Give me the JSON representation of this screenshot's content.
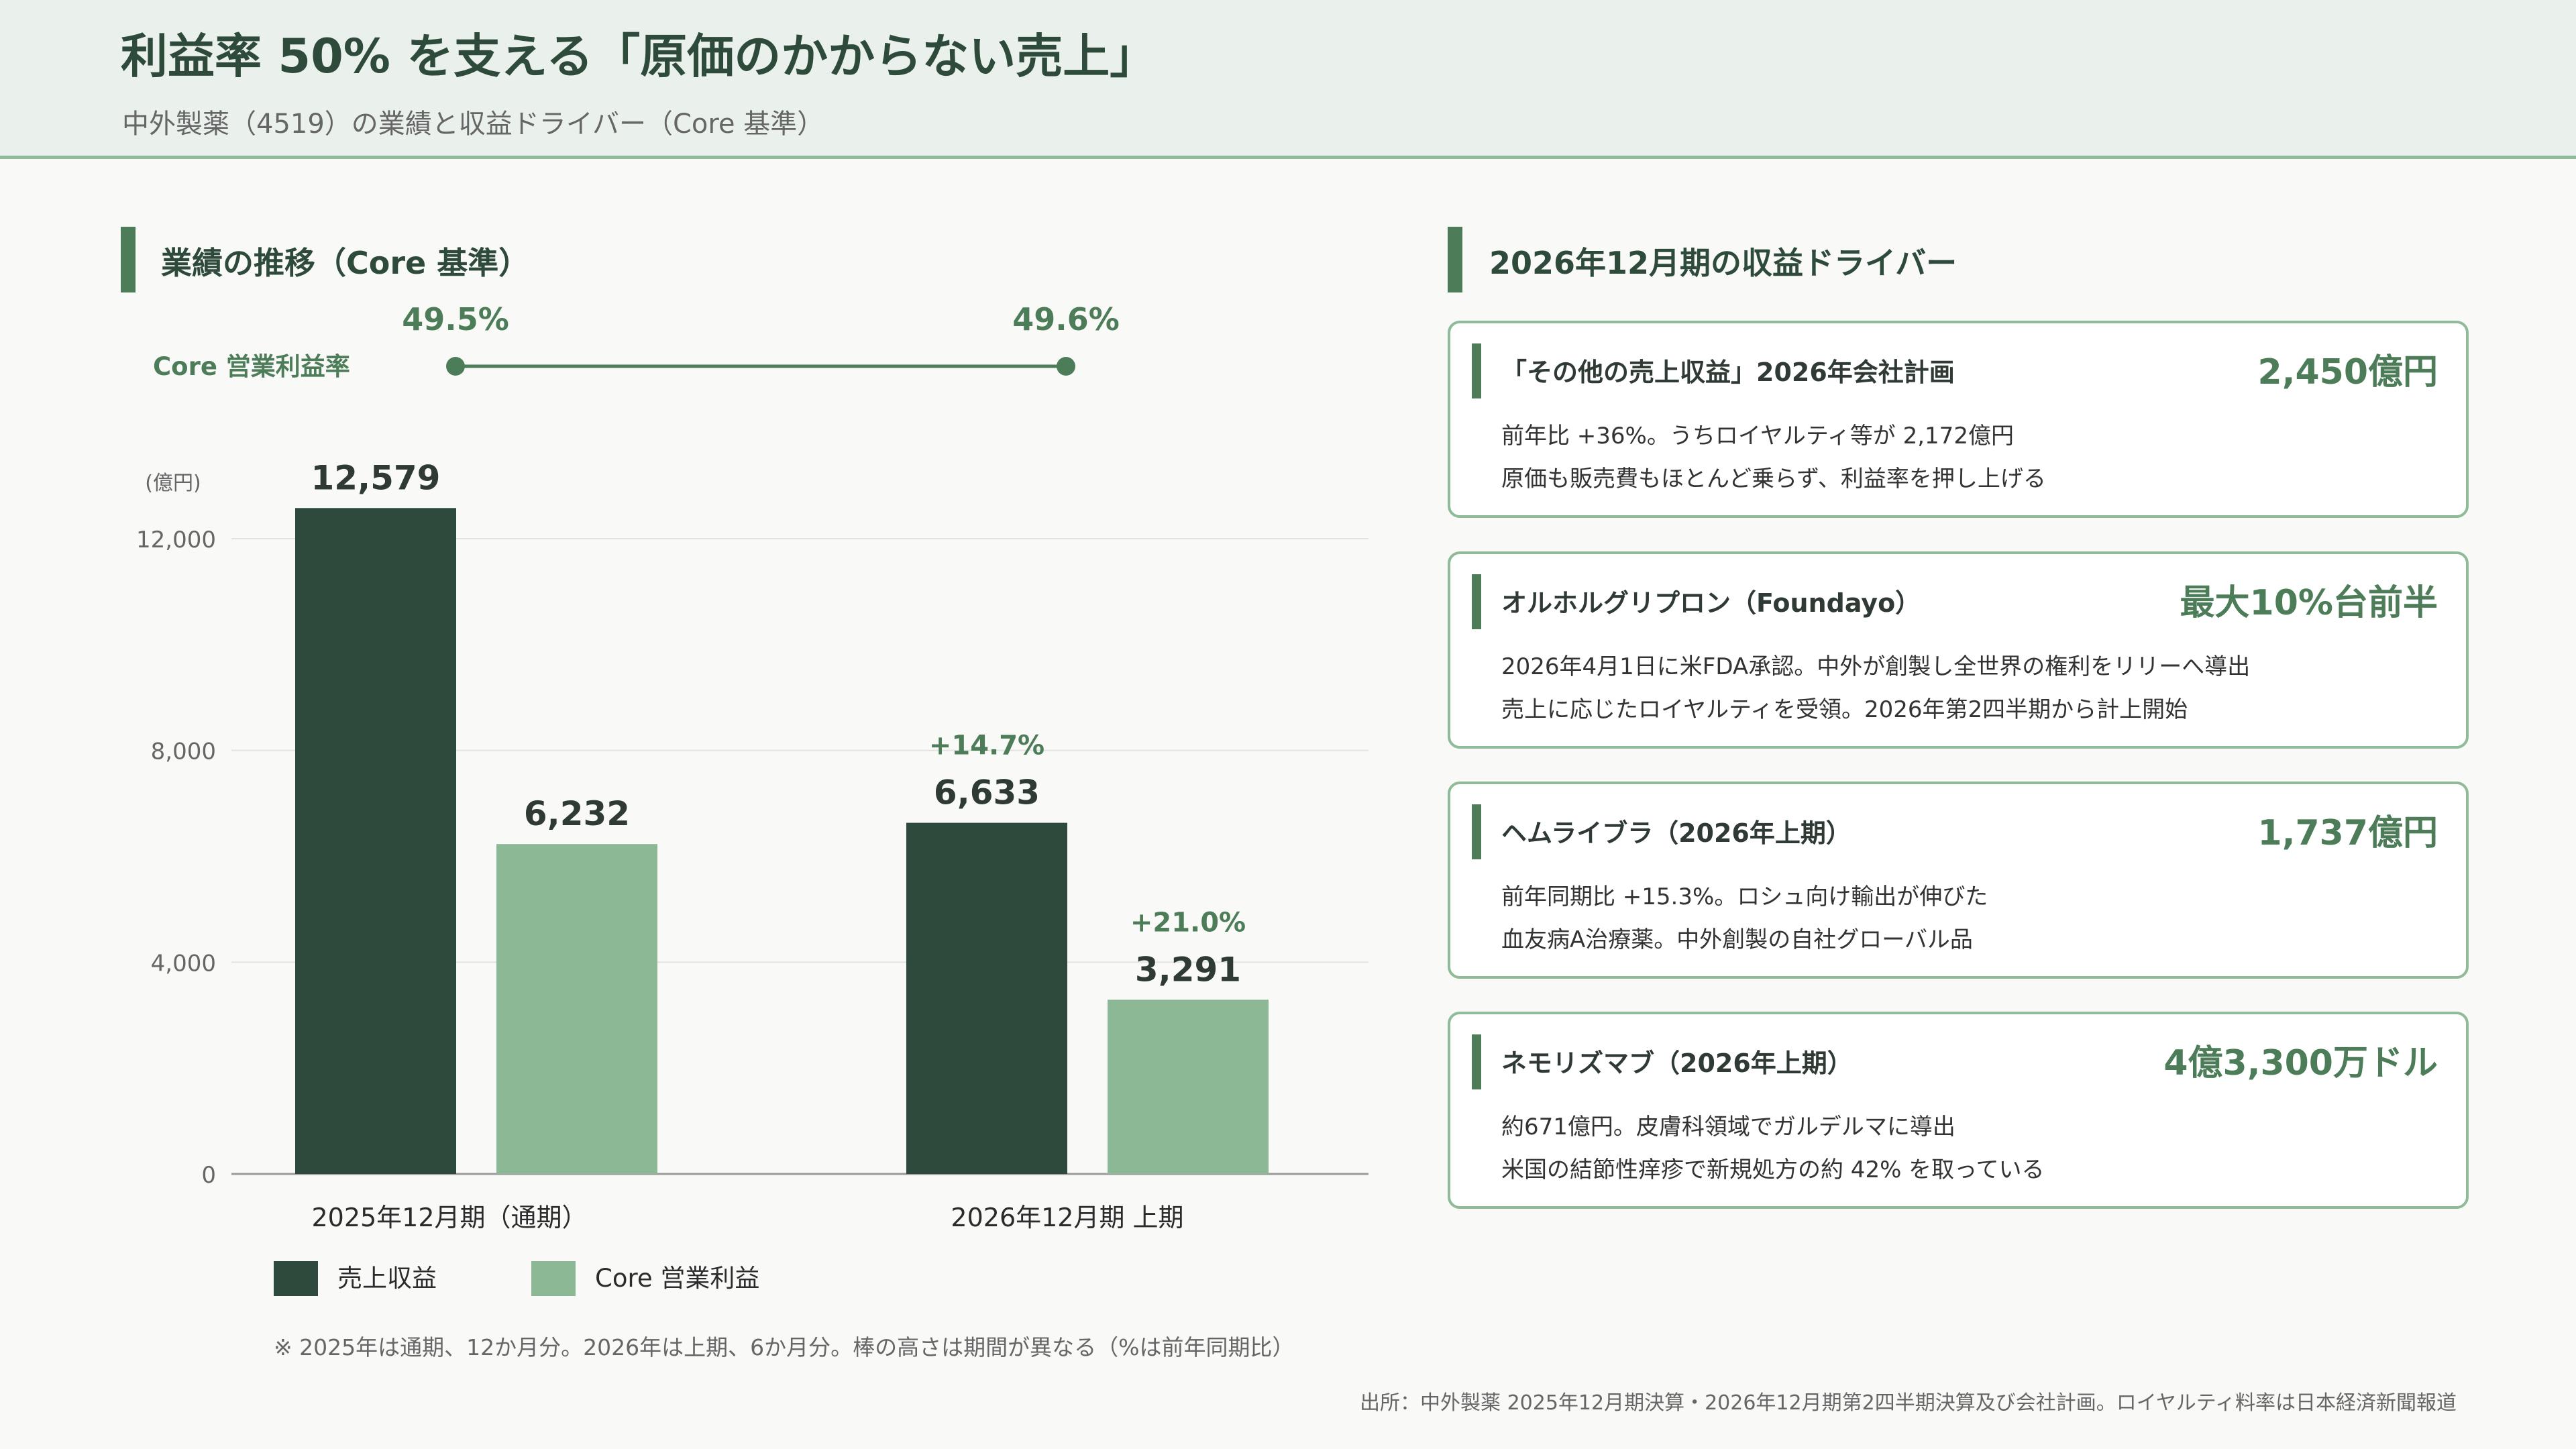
{
  "header": {
    "title": "利益率 50% を支える「原価のかからない売上」",
    "subtitle": "中外製薬（4519）の業績と収益ドライバー（Core 基準）"
  },
  "left_section": {
    "title": "業績の推移（Core 基準）"
  },
  "right_section": {
    "title": "2026年12月期の収益ドライバー"
  },
  "chart_data": {
    "type": "bar",
    "unit_label": "(億円)",
    "categories": [
      "2025年12月期（通期）",
      "2026年12月期 上期"
    ],
    "series": [
      {
        "name": "売上収益",
        "values": [
          12579,
          6633
        ],
        "value_labels": [
          "12,579",
          "6,633"
        ],
        "growth_labels": [
          "",
          "+14.7%"
        ],
        "color": "#2d4a3d"
      },
      {
        "name": "Core 営業利益",
        "values": [
          6232,
          3291
        ],
        "value_labels": [
          "6,232",
          "3,291"
        ],
        "growth_labels": [
          "",
          "+21.0%"
        ],
        "color": "#8db896"
      }
    ],
    "ylim": [
      0,
      13500
    ],
    "yticks": [
      0,
      4000,
      8000,
      12000
    ],
    "ytick_labels": [
      "0",
      "4,000",
      "8,000",
      "12,000"
    ],
    "grid": true,
    "legend_position": "bottom-left",
    "margin_line": {
      "label": "Core 営業利益率",
      "values": [
        49.5,
        49.6
      ],
      "value_labels": [
        "49.5%",
        "49.6%"
      ],
      "color": "#4c7c58"
    },
    "note": "※ 2025年は通期、12か月分。2026年は上期、6か月分。棒の高さは期間が異なる（%は前年同期比）"
  },
  "drivers": [
    {
      "title": "「その他の売上収益」2026年会社計画",
      "value": "2,450億円",
      "line1": "前年比 +36%。うちロイヤルティ等が 2,172億円",
      "line2": "原価も販売費もほとんど乗らず、利益率を押し上げる"
    },
    {
      "title": "オルホルグリプロン（Foundayo）",
      "value": "最大10%台前半",
      "line1": "2026年4月1日に米FDA承認。中外が創製し全世界の権利をリリーへ導出",
      "line2": "売上に応じたロイヤルティを受領。2026年第2四半期から計上開始"
    },
    {
      "title": "ヘムライブラ（2026年上期）",
      "value": "1,737億円",
      "line1": "前年同期比 +15.3%。ロシュ向け輸出が伸びた",
      "line2": "血友病A治療薬。中外創製の自社グローバル品"
    },
    {
      "title": "ネモリズマブ（2026年上期）",
      "value": "4億3,300万ドル",
      "line1": "約671億円。皮膚科領域でガルデルマに導出",
      "line2": "米国の結節性痒疹で新規処方の約 42% を取っている"
    }
  ],
  "source": "出所：中外製薬 2025年12月期決算・2026年12月期第2四半期決算及び会社計画。ロイヤルティ料率は日本経済新聞報道",
  "colors": {
    "accent": "#4c7c58",
    "dark_bar": "#2d4a3d",
    "light_bar": "#8db896",
    "header_bg": "#eaf1ec",
    "border": "#8fbb99"
  }
}
